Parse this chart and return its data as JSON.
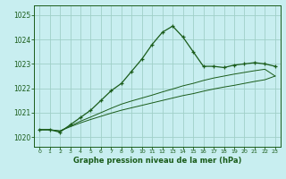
{
  "title": "Graphe pression niveau de la mer (hPa)",
  "background_color": "#c8eef0",
  "grid_color": "#a0d0c8",
  "line_color": "#1a5c1a",
  "xlim": [
    -0.5,
    23.5
  ],
  "ylim": [
    1019.6,
    1025.4
  ],
  "yticks": [
    1020,
    1021,
    1022,
    1023,
    1024,
    1025
  ],
  "xtick_labels": [
    "0",
    "1",
    "2",
    "3",
    "4",
    "5",
    "6",
    "7",
    "8",
    "9",
    "10",
    "11",
    "12",
    "13",
    "14",
    "15",
    "16",
    "17",
    "18",
    "19",
    "20",
    "21",
    "22",
    "23"
  ],
  "series1_x": [
    0,
    1,
    2,
    3,
    4,
    5,
    6,
    7,
    8,
    9,
    10,
    11,
    12,
    13,
    14,
    15,
    16,
    17,
    18,
    19,
    20,
    21,
    22,
    23
  ],
  "series1_y": [
    1020.3,
    1020.3,
    1020.2,
    1020.5,
    1020.8,
    1021.1,
    1021.5,
    1021.9,
    1022.2,
    1022.7,
    1023.2,
    1023.8,
    1024.3,
    1024.55,
    1024.1,
    1023.5,
    1022.9,
    1022.9,
    1022.85,
    1022.95,
    1023.0,
    1023.05,
    1023.0,
    1022.9
  ],
  "series2_x": [
    0,
    1,
    2,
    3,
    4,
    5,
    6,
    7,
    8,
    9,
    10,
    11,
    12,
    13,
    14,
    15,
    16,
    17,
    18,
    19,
    20,
    21,
    22,
    23
  ],
  "series2_y": [
    1020.3,
    1020.3,
    1020.25,
    1020.45,
    1020.65,
    1020.82,
    1021.0,
    1021.18,
    1021.35,
    1021.48,
    1021.6,
    1021.72,
    1021.85,
    1021.97,
    1022.1,
    1022.2,
    1022.32,
    1022.42,
    1022.5,
    1022.58,
    1022.65,
    1022.72,
    1022.78,
    1022.5
  ],
  "series3_x": [
    0,
    1,
    2,
    3,
    4,
    5,
    6,
    7,
    8,
    9,
    10,
    11,
    12,
    13,
    14,
    15,
    16,
    17,
    18,
    19,
    20,
    21,
    22,
    23
  ],
  "series3_y": [
    1020.3,
    1020.3,
    1020.25,
    1020.42,
    1020.58,
    1020.72,
    1020.85,
    1020.98,
    1021.1,
    1021.2,
    1021.3,
    1021.4,
    1021.5,
    1021.6,
    1021.7,
    1021.78,
    1021.88,
    1021.97,
    1022.05,
    1022.12,
    1022.2,
    1022.28,
    1022.35,
    1022.5
  ]
}
